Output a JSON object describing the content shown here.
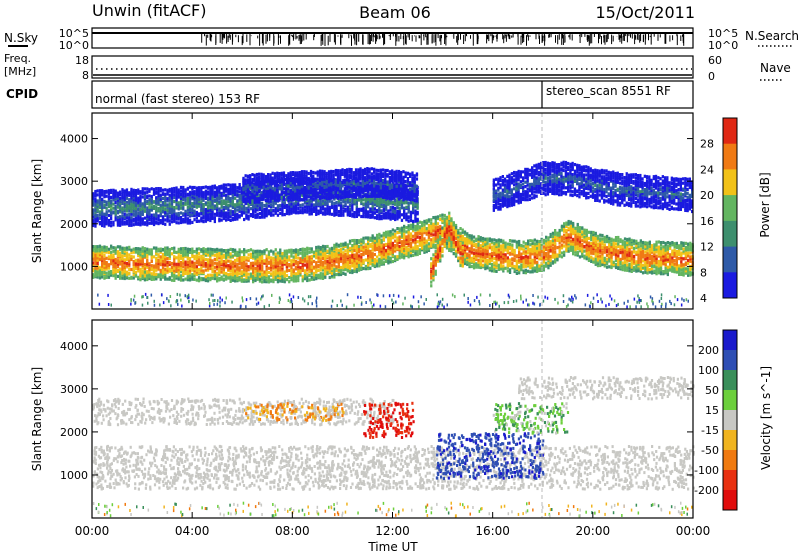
{
  "header": {
    "station": "Unwin (fitACF)",
    "beam": "Beam 06",
    "date": "15/Oct/2011"
  },
  "noise_panel": {
    "left_label": "N.Sky",
    "right_label": "N.Search",
    "left_ticks": [
      "10^5",
      "10^0"
    ],
    "right_ticks": [
      "10^5",
      "10^0"
    ]
  },
  "freq_panel": {
    "left_label_line1": "Freq.",
    "left_label_line2": "[MHz]",
    "right_label": "Nave",
    "left_ticks": [
      "18",
      "8"
    ],
    "right_ticks": [
      "60",
      "0"
    ]
  },
  "cpid_panel": {
    "label": "CPID",
    "programs": [
      {
        "name": "normal (fast stereo) 153 RF",
        "start": "00:00",
        "end": "18:00"
      },
      {
        "name": "stereo_scan 8551 RF",
        "start": "18:00",
        "end": "00:00"
      }
    ]
  },
  "chart_data": [
    {
      "type": "heatmap",
      "quantity": "Power",
      "xlabel": "",
      "ylabel": "Slant Range [km]",
      "xlim": [
        0,
        24
      ],
      "ylim": [
        0,
        4600
      ],
      "y_ticks": [
        1000,
        2000,
        3000,
        4000
      ],
      "colorbar_label": "Power [dB]",
      "colorbar_ticks": [
        4,
        8,
        12,
        16,
        20,
        24,
        28
      ],
      "colorbar_colors": [
        "#1a1ae0",
        "#2e5aa8",
        "#3d8f6e",
        "#63b560",
        "#f2c218",
        "#f07a14",
        "#e02814"
      ],
      "bands": [
        {
          "t": [
            0,
            2,
            4,
            6,
            8,
            9.5,
            11,
            13,
            14,
            15,
            16,
            17,
            18,
            19,
            20,
            22,
            24
          ],
          "r": [
            1150,
            1100,
            1080,
            1050,
            1050,
            1150,
            1350,
            1700,
            1900,
            1400,
            1300,
            1250,
            1300,
            1750,
            1450,
            1250,
            1200
          ],
          "w": 380,
          "dB": 26
        },
        {
          "t": [
            0,
            3,
            6,
            8,
            10,
            12,
            13
          ],
          "r": [
            2400,
            2450,
            2550,
            2700,
            2650,
            2550,
            2500
          ],
          "w": 420,
          "dB": 12
        },
        {
          "t": [
            6,
            9,
            11,
            13
          ],
          "r": [
            2850,
            2950,
            3000,
            2900
          ],
          "w": 300,
          "dB": 8
        },
        {
          "t": [
            16,
            17,
            18,
            19,
            20,
            21,
            22,
            24
          ],
          "r": [
            2700,
            2900,
            3100,
            3100,
            2950,
            2850,
            2800,
            2700
          ],
          "w": 380,
          "dB": 9
        },
        {
          "t": [
            13.5,
            14.2,
            14.8
          ],
          "r": [
            900,
            2000,
            1200
          ],
          "w": 300,
          "dB": 28
        }
      ]
    },
    {
      "type": "heatmap",
      "quantity": "Velocity",
      "xlabel": "Time UT",
      "ylabel": "Slant Range [km]",
      "xlim": [
        0,
        24
      ],
      "ylim": [
        0,
        4600
      ],
      "x_tick_labels": [
        "00:00",
        "04:00",
        "08:00",
        "12:00",
        "16:00",
        "20:00",
        "00:00"
      ],
      "y_ticks": [
        1000,
        2000,
        3000,
        4000
      ],
      "colorbar_label": "Velocity [m s^-1]",
      "colorbar_ticks": [
        200,
        100,
        50,
        15,
        -15,
        -50,
        -100,
        -200
      ],
      "colorbar_colors": [
        "#1a1acc",
        "#2f4fb4",
        "#3a8f5a",
        "#6ccf3c",
        "#c8c8c4",
        "#f0b420",
        "#f07a10",
        "#e83010",
        "#e00c0c"
      ],
      "regions": [
        {
          "t": [
            0,
            24
          ],
          "r": [
            700,
            1700
          ],
          "v": 0
        },
        {
          "t": [
            0,
            12
          ],
          "r": [
            2200,
            2800
          ],
          "v": 0
        },
        {
          "t": [
            6,
            10
          ],
          "r": [
            2300,
            2700
          ],
          "v": -40
        },
        {
          "t": [
            10.8,
            12.8
          ],
          "r": [
            1900,
            2700
          ],
          "v": -200
        },
        {
          "t": [
            13.7,
            18
          ],
          "r": [
            950,
            2000
          ],
          "v": 180
        },
        {
          "t": [
            16,
            19
          ],
          "r": [
            2000,
            2700
          ],
          "v": 40
        },
        {
          "t": [
            17,
            24
          ],
          "r": [
            2800,
            3300
          ],
          "v": 0
        }
      ]
    }
  ]
}
